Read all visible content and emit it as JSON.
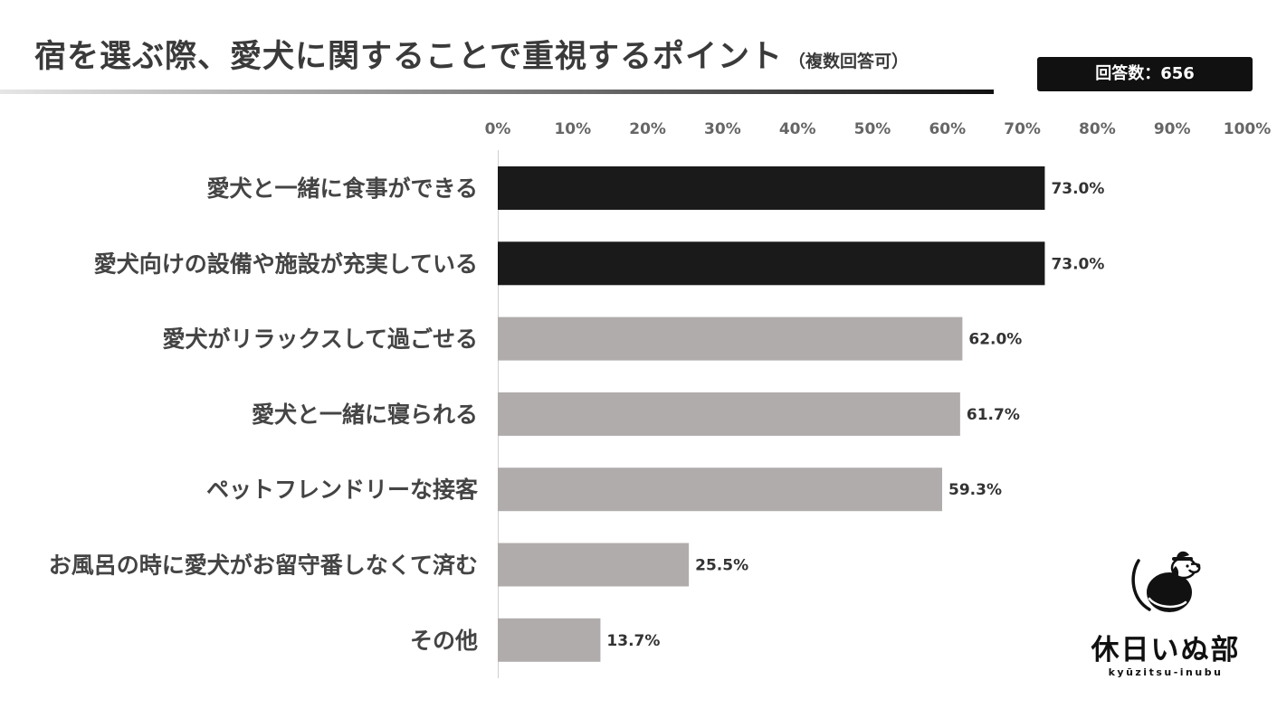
{
  "title": "宿を選ぶ際、愛犬に関することで重視するポイント",
  "title_note": "（複数回答可）",
  "badge": "回答数：656",
  "logo": {
    "name": "休日いぬ部",
    "sub": "kyūzitsu-inubu",
    "icon": "dog-icon"
  },
  "colors": {
    "highlight": "#1a1a1a",
    "default": "#b0acab",
    "axis": "#cfcfcf"
  },
  "chart_data": {
    "type": "bar",
    "orientation": "horizontal",
    "categories": [
      "愛犬と一緒に食事ができる",
      "愛犬向けの設備や施設が充実している",
      "愛犬がリラックスして過ごせる",
      "愛犬と一緒に寝られる",
      "ペットフレンドリーな接客",
      "お風呂の時に愛犬がお留守番しなくて済む",
      "その他"
    ],
    "values": [
      73.0,
      73.0,
      62.0,
      61.7,
      59.3,
      25.5,
      13.7
    ],
    "value_labels": [
      "73.0%",
      "73.0%",
      "62.0%",
      "61.7%",
      "59.3%",
      "25.5%",
      "13.7%"
    ],
    "highlighted": [
      true,
      true,
      false,
      false,
      false,
      false,
      false
    ],
    "xlim": [
      0,
      100
    ],
    "xticks": [
      "0%",
      "10%",
      "20%",
      "30%",
      "40%",
      "50%",
      "60%",
      "70%",
      "80%",
      "90%",
      "100%"
    ],
    "axis_position": "top",
    "grid": false,
    "legend": "none"
  }
}
